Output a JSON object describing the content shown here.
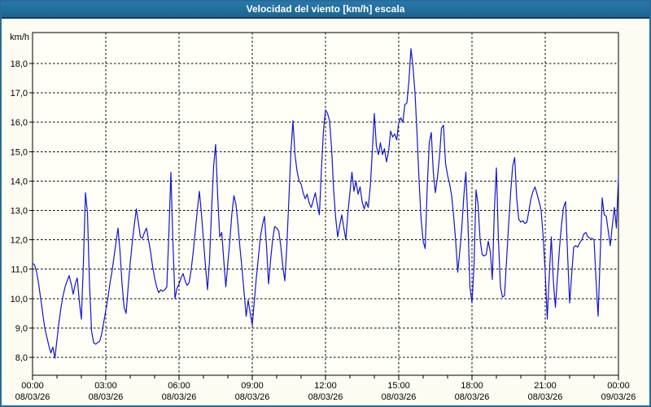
{
  "window": {
    "title": "Velocidad del viento [km/h] escala",
    "title_bar_color": "#1E6C9E",
    "border_color": "#2A6A99",
    "background_color": "#FCFCF2"
  },
  "chart_data": {
    "type": "line",
    "title": "Velocidad del viento [km/h] escala",
    "ylabel": "km/h",
    "xlabel": "",
    "legend": "none",
    "grid": "dashed",
    "line_color": "#1414CC",
    "grid_color": "#000000",
    "frame_color": "#000000",
    "text_color": "#000000",
    "plot_background": "#FFFFF8",
    "ylim": [
      7.4,
      19.0
    ],
    "x_span_hours": 24,
    "interval_minutes": 5,
    "start_time": "00:00",
    "y_ticks": [
      {
        "value": 8,
        "label": "8,0"
      },
      {
        "value": 9,
        "label": "9,0"
      },
      {
        "value": 10,
        "label": "10,0"
      },
      {
        "value": 11,
        "label": "11,0"
      },
      {
        "value": 12,
        "label": "12,0"
      },
      {
        "value": 13,
        "label": "13,0"
      },
      {
        "value": 14,
        "label": "14,0"
      },
      {
        "value": 15,
        "label": "15,0"
      },
      {
        "value": 16,
        "label": "16,0"
      },
      {
        "value": 17,
        "label": "17,0"
      },
      {
        "value": 18,
        "label": "18,0"
      }
    ],
    "x_ticks": [
      {
        "hour": 0,
        "time": "00:00",
        "date": "08/03/26"
      },
      {
        "hour": 3,
        "time": "03:00",
        "date": "08/03/26"
      },
      {
        "hour": 6,
        "time": "06:00",
        "date": "08/03/26"
      },
      {
        "hour": 9,
        "time": "09:00",
        "date": "08/03/26"
      },
      {
        "hour": 12,
        "time": "12:00",
        "date": "08/03/26"
      },
      {
        "hour": 15,
        "time": "15:00",
        "date": "08/03/26"
      },
      {
        "hour": 18,
        "time": "18:00",
        "date": "08/03/26"
      },
      {
        "hour": 21,
        "time": "21:00",
        "date": "08/03/26"
      },
      {
        "hour": 24,
        "time": "00:00",
        "date": "09/03/26"
      }
    ],
    "x_minor_tick_hours": 1,
    "values": [
      11.2,
      11.15,
      10.9,
      10.5,
      10.0,
      9.5,
      9.0,
      8.7,
      8.4,
      8.15,
      8.35,
      7.97,
      8.6,
      9.2,
      9.7,
      10.1,
      10.4,
      10.6,
      10.78,
      10.5,
      10.15,
      10.5,
      10.7,
      9.9,
      9.3,
      11.2,
      13.6,
      12.9,
      10.5,
      8.9,
      8.5,
      8.45,
      8.5,
      8.55,
      8.8,
      9.2,
      9.6,
      10.0,
      10.5,
      10.9,
      11.4,
      11.9,
      12.4,
      11.6,
      10.5,
      9.7,
      9.5,
      10.4,
      11.2,
      11.9,
      12.5,
      13.05,
      12.6,
      12.1,
      12.05,
      12.25,
      12.4,
      12.0,
      11.6,
      11.1,
      10.7,
      10.4,
      10.2,
      10.3,
      10.25,
      10.3,
      10.4,
      12.2,
      14.3,
      11.9,
      10.0,
      10.35,
      10.5,
      10.7,
      10.85,
      10.6,
      10.45,
      10.55,
      11.0,
      11.6,
      12.3,
      13.0,
      13.65,
      12.9,
      12.0,
      11.1,
      10.3,
      11.3,
      13.0,
      14.5,
      15.25,
      13.5,
      12.1,
      12.25,
      11.3,
      10.4,
      11.2,
      12.0,
      12.9,
      13.5,
      13.2,
      12.5,
      11.7,
      11.0,
      10.2,
      9.4,
      9.95,
      9.5,
      9.1,
      9.9,
      10.7,
      11.4,
      12.1,
      12.5,
      12.8,
      11.8,
      10.5,
      11.3,
      12.0,
      12.45,
      12.4,
      12.3,
      11.8,
      11.1,
      10.6,
      11.8,
      13.4,
      15.0,
      16.05,
      14.9,
      14.35,
      14.0,
      13.9,
      13.6,
      13.4,
      13.55,
      13.25,
      13.1,
      13.35,
      13.6,
      13.2,
      12.85,
      14.4,
      15.7,
      16.42,
      16.3,
      16.05,
      15.1,
      13.7,
      12.75,
      12.1,
      12.5,
      12.85,
      12.4,
      12.0,
      12.9,
      13.6,
      14.3,
      13.65,
      14.0,
      13.55,
      13.8,
      13.3,
      13.05,
      13.3,
      13.1,
      13.8,
      15.0,
      16.3,
      15.2,
      14.9,
      15.3,
      14.9,
      15.1,
      14.65,
      15.0,
      15.7,
      15.5,
      15.6,
      15.4,
      16.0,
      16.15,
      16.0,
      16.6,
      16.65,
      17.4,
      18.5,
      17.9,
      17.0,
      15.6,
      14.0,
      12.7,
      11.95,
      11.7,
      13.8,
      15.3,
      15.65,
      14.3,
      13.6,
      14.1,
      14.8,
      15.8,
      15.9,
      14.6,
      14.2,
      13.9,
      13.5,
      12.8,
      11.95,
      10.9,
      11.6,
      12.4,
      13.5,
      14.3,
      12.6,
      10.4,
      9.85,
      11.1,
      13.7,
      13.2,
      12.0,
      11.5,
      11.45,
      11.5,
      11.95,
      11.6,
      10.65,
      13.0,
      14.45,
      12.0,
      10.4,
      10.05,
      10.1,
      11.3,
      12.5,
      13.6,
      14.5,
      14.8,
      13.4,
      12.7,
      12.6,
      12.65,
      12.55,
      12.6,
      13.0,
      13.4,
      13.65,
      13.8,
      13.55,
      13.3,
      13.0,
      12.1,
      10.9,
      9.3,
      10.8,
      12.1,
      10.6,
      9.7,
      10.7,
      11.7,
      12.5,
      13.1,
      13.3,
      11.5,
      9.85,
      10.8,
      11.75,
      11.8,
      11.75,
      11.9,
      12.0,
      12.2,
      12.25,
      12.1,
      12.05,
      12.05,
      12.0,
      10.6,
      9.4,
      11.4,
      13.43,
      12.85,
      12.8,
      12.3,
      11.8,
      12.5,
      13.1,
      12.4,
      14.15
    ]
  }
}
